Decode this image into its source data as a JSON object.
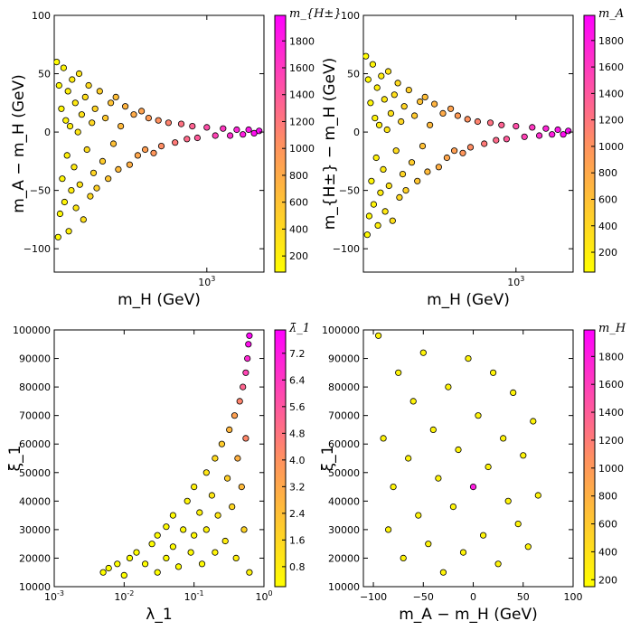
{
  "colors": {
    "cmap_low": "#ffff00",
    "cmap_high": "#ff00ff",
    "marker_edge": "#000000"
  },
  "chart_data": [
    {
      "type": "scatter",
      "panel": "top-left",
      "xscale": "log",
      "xlim": [
        180,
        1900
      ],
      "ylim": [
        -120,
        100
      ],
      "xlabel": "m_H (GeV)",
      "ylabel": "m_A − m_H (GeV)",
      "xticks": [
        {
          "value": 1000,
          "label": "10",
          "sup": "3"
        }
      ],
      "yticks": [
        {
          "value": 100,
          "label": "100"
        },
        {
          "value": 50,
          "label": "50"
        },
        {
          "value": 0,
          "label": "0"
        },
        {
          "value": -50,
          "label": "−50"
        },
        {
          "value": -100,
          "label": "−100"
        }
      ],
      "colorbar": {
        "label": "m_{H±}",
        "range": [
          80,
          1990
        ],
        "ticks": [
          {
            "value": 200,
            "label": "200"
          },
          {
            "value": 400,
            "label": "400"
          },
          {
            "value": 600,
            "label": "600"
          },
          {
            "value": 800,
            "label": "800"
          },
          {
            "value": 1000,
            "label": "1000"
          },
          {
            "value": 1200,
            "label": "1200"
          },
          {
            "value": 1400,
            "label": "1400"
          },
          {
            "value": 1600,
            "label": "1600"
          },
          {
            "value": 1800,
            "label": "1800"
          }
        ]
      },
      "points": [
        [
          185,
          60
        ],
        [
          188,
          -90
        ],
        [
          190,
          40
        ],
        [
          192,
          -70
        ],
        [
          195,
          20
        ],
        [
          197,
          -40
        ],
        [
          200,
          55
        ],
        [
          202,
          -60
        ],
        [
          205,
          10
        ],
        [
          208,
          -20
        ],
        [
          210,
          35
        ],
        [
          212,
          -85
        ],
        [
          215,
          5
        ],
        [
          218,
          -50
        ],
        [
          220,
          45
        ],
        [
          225,
          -30
        ],
        [
          228,
          25
        ],
        [
          230,
          -65
        ],
        [
          235,
          0
        ],
        [
          238,
          50
        ],
        [
          240,
          -45
        ],
        [
          245,
          15
        ],
        [
          250,
          -75
        ],
        [
          255,
          30
        ],
        [
          260,
          -15
        ],
        [
          265,
          40
        ],
        [
          270,
          -55
        ],
        [
          275,
          8
        ],
        [
          280,
          -35
        ],
        [
          285,
          20
        ],
        [
          290,
          -48
        ],
        [
          300,
          35
        ],
        [
          310,
          -25
        ],
        [
          320,
          12
        ],
        [
          330,
          -40
        ],
        [
          340,
          25
        ],
        [
          350,
          -10
        ],
        [
          360,
          30
        ],
        [
          370,
          -32
        ],
        [
          380,
          5
        ],
        [
          400,
          22
        ],
        [
          420,
          -28
        ],
        [
          440,
          15
        ],
        [
          460,
          -20
        ],
        [
          480,
          18
        ],
        [
          500,
          -15
        ],
        [
          520,
          12
        ],
        [
          550,
          -18
        ],
        [
          580,
          10
        ],
        [
          600,
          -12
        ],
        [
          650,
          8
        ],
        [
          700,
          -9
        ],
        [
          750,
          7
        ],
        [
          800,
          -6
        ],
        [
          850,
          5
        ],
        [
          900,
          -5
        ],
        [
          1000,
          4
        ],
        [
          1100,
          -3
        ],
        [
          1200,
          3
        ],
        [
          1300,
          -3
        ],
        [
          1400,
          2
        ],
        [
          1500,
          -2
        ],
        [
          1600,
          2
        ],
        [
          1700,
          -1
        ],
        [
          1800,
          1
        ]
      ]
    },
    {
      "type": "scatter",
      "panel": "top-right",
      "xscale": "log",
      "xlim": [
        180,
        1900
      ],
      "ylim": [
        -120,
        100
      ],
      "xlabel": "m_H (GeV)",
      "ylabel": "m_{H±} − m_H (GeV)",
      "xticks": [
        {
          "value": 1000,
          "label": "10",
          "sup": "3"
        }
      ],
      "yticks": [
        {
          "value": 100,
          "label": "100"
        },
        {
          "value": 50,
          "label": "50"
        },
        {
          "value": 0,
          "label": "0"
        },
        {
          "value": -50,
          "label": "−50"
        },
        {
          "value": -100,
          "label": "−100"
        }
      ],
      "colorbar": {
        "label": "m_A",
        "range": [
          50,
          1990
        ],
        "ticks": [
          {
            "value": 200,
            "label": "200"
          },
          {
            "value": 400,
            "label": "400"
          },
          {
            "value": 600,
            "label": "600"
          },
          {
            "value": 800,
            "label": "800"
          },
          {
            "value": 1000,
            "label": "1000"
          },
          {
            "value": 1200,
            "label": "1200"
          },
          {
            "value": 1400,
            "label": "1400"
          },
          {
            "value": 1600,
            "label": "1600"
          },
          {
            "value": 1800,
            "label": "1800"
          }
        ]
      },
      "points": [
        [
          185,
          65
        ],
        [
          188,
          -88
        ],
        [
          190,
          45
        ],
        [
          192,
          -72
        ],
        [
          195,
          25
        ],
        [
          197,
          -42
        ],
        [
          200,
          58
        ],
        [
          202,
          -62
        ],
        [
          205,
          12
        ],
        [
          208,
          -22
        ],
        [
          210,
          38
        ],
        [
          212,
          -80
        ],
        [
          215,
          6
        ],
        [
          218,
          -52
        ],
        [
          220,
          48
        ],
        [
          225,
          -32
        ],
        [
          228,
          28
        ],
        [
          230,
          -68
        ],
        [
          235,
          2
        ],
        [
          238,
          52
        ],
        [
          240,
          -46
        ],
        [
          245,
          16
        ],
        [
          250,
          -76
        ],
        [
          255,
          32
        ],
        [
          260,
          -16
        ],
        [
          265,
          42
        ],
        [
          270,
          -56
        ],
        [
          275,
          9
        ],
        [
          280,
          -36
        ],
        [
          285,
          22
        ],
        [
          290,
          -50
        ],
        [
          300,
          36
        ],
        [
          310,
          -26
        ],
        [
          320,
          14
        ],
        [
          330,
          -42
        ],
        [
          340,
          26
        ],
        [
          350,
          -12
        ],
        [
          360,
          30
        ],
        [
          370,
          -34
        ],
        [
          380,
          6
        ],
        [
          400,
          24
        ],
        [
          420,
          -30
        ],
        [
          440,
          16
        ],
        [
          460,
          -22
        ],
        [
          480,
          20
        ],
        [
          500,
          -16
        ],
        [
          520,
          14
        ],
        [
          550,
          -18
        ],
        [
          580,
          11
        ],
        [
          600,
          -13
        ],
        [
          650,
          9
        ],
        [
          700,
          -10
        ],
        [
          750,
          8
        ],
        [
          800,
          -7
        ],
        [
          850,
          6
        ],
        [
          900,
          -6
        ],
        [
          1000,
          5
        ],
        [
          1100,
          -4
        ],
        [
          1200,
          4
        ],
        [
          1300,
          -3
        ],
        [
          1400,
          3
        ],
        [
          1500,
          -2
        ],
        [
          1600,
          2
        ],
        [
          1700,
          -2
        ],
        [
          1800,
          1
        ]
      ]
    },
    {
      "type": "scatter",
      "panel": "bottom-left",
      "xscale": "log",
      "xlim": [
        0.001,
        1
      ],
      "ylim": [
        10000,
        100000
      ],
      "xlabel": "λ_1",
      "ylabel": "ξ_1",
      "xticks": [
        {
          "value": 0.001,
          "label": "10",
          "sup": "-3"
        },
        {
          "value": 0.01,
          "label": "10",
          "sup": "-2"
        },
        {
          "value": 0.1,
          "label": "10",
          "sup": "-1"
        },
        {
          "value": 1,
          "label": "10",
          "sup": "0"
        }
      ],
      "yticks": [
        {
          "value": 100000,
          "label": "100000"
        },
        {
          "value": 90000,
          "label": "90000"
        },
        {
          "value": 80000,
          "label": "80000"
        },
        {
          "value": 70000,
          "label": "70000"
        },
        {
          "value": 60000,
          "label": "60000"
        },
        {
          "value": 50000,
          "label": "50000"
        },
        {
          "value": 40000,
          "label": "40000"
        },
        {
          "value": 30000,
          "label": "30000"
        },
        {
          "value": 20000,
          "label": "20000"
        },
        {
          "value": 10000,
          "label": "10000"
        }
      ],
      "colorbar": {
        "label": "λ̄_1",
        "range": [
          0.2,
          7.9
        ],
        "ticks": [
          {
            "value": 0.8,
            "label": "0.8"
          },
          {
            "value": 1.6,
            "label": "1.6"
          },
          {
            "value": 2.4,
            "label": "2.4"
          },
          {
            "value": 3.2,
            "label": "3.2"
          },
          {
            "value": 4.0,
            "label": "4.0"
          },
          {
            "value": 4.8,
            "label": "4.8"
          },
          {
            "value": 5.6,
            "label": "5.6"
          },
          {
            "value": 6.4,
            "label": "6.4"
          },
          {
            "value": 7.2,
            "label": "7.2"
          }
        ]
      },
      "points": [
        [
          0.005,
          15000
        ],
        [
          0.006,
          16500
        ],
        [
          0.008,
          18000
        ],
        [
          0.01,
          14000
        ],
        [
          0.012,
          20000
        ],
        [
          0.015,
          22000
        ],
        [
          0.02,
          18000
        ],
        [
          0.025,
          25000
        ],
        [
          0.03,
          15000
        ],
        [
          0.03,
          28000
        ],
        [
          0.04,
          20000
        ],
        [
          0.04,
          31000
        ],
        [
          0.05,
          24000
        ],
        [
          0.05,
          35000
        ],
        [
          0.06,
          17000
        ],
        [
          0.07,
          30000
        ],
        [
          0.08,
          40000
        ],
        [
          0.09,
          22000
        ],
        [
          0.1,
          45000
        ],
        [
          0.1,
          28000
        ],
        [
          0.12,
          36000
        ],
        [
          0.13,
          18000
        ],
        [
          0.15,
          50000
        ],
        [
          0.15,
          30000
        ],
        [
          0.18,
          42000
        ],
        [
          0.2,
          22000
        ],
        [
          0.2,
          55000
        ],
        [
          0.22,
          35000
        ],
        [
          0.25,
          60000
        ],
        [
          0.28,
          26000
        ],
        [
          0.3,
          48000
        ],
        [
          0.32,
          65000
        ],
        [
          0.35,
          38000
        ],
        [
          0.38,
          70000
        ],
        [
          0.4,
          20000
        ],
        [
          0.42,
          55000
        ],
        [
          0.45,
          75000
        ],
        [
          0.48,
          45000
        ],
        [
          0.5,
          80000
        ],
        [
          0.52,
          30000
        ],
        [
          0.55,
          85000
        ],
        [
          0.55,
          62000
        ],
        [
          0.58,
          90000
        ],
        [
          0.6,
          95000
        ],
        [
          0.62,
          98000
        ],
        [
          0.62,
          15000
        ]
      ]
    },
    {
      "type": "scatter",
      "panel": "bottom-right",
      "xscale": "linear",
      "xlim": [
        -110,
        100
      ],
      "ylim": [
        10000,
        100000
      ],
      "xlabel": "m_A − m_H (GeV)",
      "ylabel": "ξ_1",
      "xticks": [
        {
          "value": -100,
          "label": "−100"
        },
        {
          "value": -50,
          "label": "−50"
        },
        {
          "value": 0,
          "label": "0"
        },
        {
          "value": 50,
          "label": "50"
        },
        {
          "value": 100,
          "label": "100"
        }
      ],
      "yticks": [
        {
          "value": 100000,
          "label": "100000"
        },
        {
          "value": 90000,
          "label": "90000"
        },
        {
          "value": 80000,
          "label": "80000"
        },
        {
          "value": 70000,
          "label": "70000"
        },
        {
          "value": 60000,
          "label": "60000"
        },
        {
          "value": 50000,
          "label": "50000"
        },
        {
          "value": 40000,
          "label": "40000"
        },
        {
          "value": 30000,
          "label": "30000"
        },
        {
          "value": 20000,
          "label": "20000"
        },
        {
          "value": 10000,
          "label": "10000"
        }
      ],
      "colorbar": {
        "label": "m_H",
        "range": [
          150,
          1990
        ],
        "ticks": [
          {
            "value": 200,
            "label": "200"
          },
          {
            "value": 400,
            "label": "400"
          },
          {
            "value": 600,
            "label": "600"
          },
          {
            "value": 800,
            "label": "800"
          },
          {
            "value": 1000,
            "label": "1000"
          },
          {
            "value": 1200,
            "label": "1200"
          },
          {
            "value": 1400,
            "label": "1400"
          },
          {
            "value": 1600,
            "label": "1600"
          },
          {
            "value": 1800,
            "label": "1800"
          }
        ]
      },
      "points": [
        [
          -95,
          98000
        ],
        [
          -90,
          62000
        ],
        [
          -85,
          30000
        ],
        [
          -80,
          45000
        ],
        [
          -75,
          85000
        ],
        [
          -70,
          20000
        ],
        [
          -65,
          55000
        ],
        [
          -60,
          75000
        ],
        [
          -55,
          35000
        ],
        [
          -50,
          92000
        ],
        [
          -45,
          25000
        ],
        [
          -40,
          65000
        ],
        [
          -35,
          48000
        ],
        [
          -30,
          15000
        ],
        [
          -25,
          80000
        ],
        [
          -20,
          38000
        ],
        [
          -15,
          58000
        ],
        [
          -10,
          22000
        ],
        [
          -5,
          90000
        ],
        [
          0,
          45000
        ],
        [
          5,
          70000
        ],
        [
          10,
          28000
        ],
        [
          15,
          52000
        ],
        [
          20,
          85000
        ],
        [
          25,
          18000
        ],
        [
          30,
          62000
        ],
        [
          35,
          40000
        ],
        [
          40,
          78000
        ],
        [
          45,
          32000
        ],
        [
          50,
          56000
        ],
        [
          55,
          24000
        ],
        [
          60,
          68000
        ],
        [
          65,
          42000
        ]
      ]
    }
  ]
}
